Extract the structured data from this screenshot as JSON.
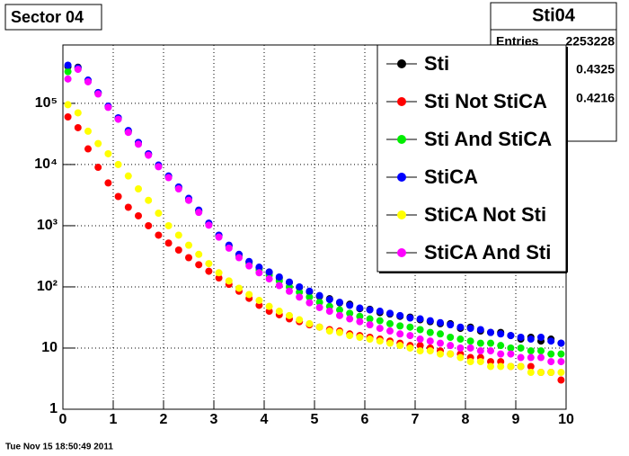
{
  "chart_data": {
    "type": "scatter",
    "title": "Sector 04",
    "footer": "Tue Nov 15 18:50:49 2011",
    "stats": {
      "title": "Sti04",
      "entries_label": "Entries",
      "entries": 2253228,
      "mean": 0.4325,
      "rms": 0.4216
    },
    "log_y": true,
    "grid": true,
    "legend": "top-right",
    "xlim": [
      0,
      10
    ],
    "xticks": [
      0,
      1,
      2,
      3,
      4,
      5,
      6,
      7,
      8,
      9,
      10
    ],
    "ylim": [
      1,
      900000
    ],
    "yticks": [
      1,
      10,
      {
        "value": 100,
        "label": "10²"
      },
      {
        "value": 1000,
        "label": "10³"
      },
      {
        "value": 10000,
        "label": "10⁴"
      },
      {
        "value": 100000,
        "label": "10⁵"
      }
    ],
    "x": [
      0.1,
      0.3,
      0.5,
      0.7,
      0.9,
      1.1,
      1.3,
      1.5,
      1.7,
      1.9,
      2.1,
      2.3,
      2.5,
      2.7,
      2.9,
      3.1,
      3.3,
      3.5,
      3.7,
      3.9,
      4.1,
      4.3,
      4.5,
      4.7,
      4.9,
      5.1,
      5.3,
      5.5,
      5.7,
      5.9,
      6.1,
      6.3,
      6.5,
      6.7,
      6.9,
      7.1,
      7.3,
      7.5,
      7.7,
      7.9,
      8.1,
      8.3,
      8.5,
      8.7,
      8.9,
      9.1,
      9.3,
      9.5,
      9.7,
      9.9
    ],
    "series": [
      {
        "name": "Sti",
        "color": "#000000",
        "values": [
          400000,
          390000,
          235000,
          148000,
          88000,
          57000,
          35000,
          22500,
          14800,
          9600,
          6400,
          4200,
          2700,
          1750,
          1080,
          690,
          470,
          335,
          255,
          205,
          172,
          140,
          118,
          98,
          83,
          70,
          64,
          55,
          52,
          44,
          43,
          38,
          36,
          33,
          32,
          29,
          27,
          25,
          25,
          21,
          22,
          19,
          18,
          18,
          16,
          14,
          15,
          13,
          14,
          12
        ]
      },
      {
        "name": "Sti Not StiCA",
        "color": "#ff0000",
        "values": [
          60000,
          40000,
          18000,
          9000,
          5000,
          3000,
          2000,
          1450,
          1000,
          700,
          520,
          400,
          300,
          230,
          180,
          140,
          110,
          85,
          65,
          50,
          40,
          35,
          30,
          27,
          24,
          22,
          20,
          19,
          17,
          16,
          15,
          14,
          13,
          12,
          11,
          11,
          10,
          9,
          8,
          8,
          7,
          7,
          6,
          6,
          5,
          5,
          5,
          4,
          4,
          3
        ]
      },
      {
        "name": "Sti And StiCA",
        "color": "#00ee00",
        "values": [
          330000,
          370000,
          230000,
          145000,
          87000,
          56000,
          34000,
          22000,
          14500,
          9400,
          6200,
          4100,
          2650,
          1700,
          1050,
          670,
          450,
          320,
          240,
          190,
          155,
          125,
          100,
          82,
          68,
          56,
          48,
          42,
          37,
          33,
          30,
          28,
          25,
          23,
          22,
          20,
          18,
          17,
          15,
          14,
          13,
          12,
          12,
          11,
          10,
          10,
          9,
          9,
          8,
          8
        ]
      },
      {
        "name": "StiCA",
        "color": "#0000ff",
        "values": [
          420000,
          380000,
          240000,
          150000,
          90000,
          58000,
          36000,
          23000,
          15000,
          9800,
          6500,
          4300,
          2800,
          1800,
          1100,
          700,
          480,
          340,
          260,
          210,
          175,
          145,
          120,
          100,
          85,
          72,
          62,
          56,
          50,
          45,
          42,
          40,
          37,
          34,
          31,
          30,
          28,
          26,
          24,
          22,
          21,
          20,
          18,
          17,
          16,
          15,
          14,
          15,
          13,
          12
        ]
      },
      {
        "name": "StiCA Not Sti",
        "color": "#ffff00",
        "values": [
          95000,
          70000,
          35000,
          22000,
          15000,
          10000,
          6500,
          4000,
          2600,
          1600,
          1000,
          700,
          480,
          340,
          240,
          170,
          125,
          95,
          75,
          60,
          48,
          40,
          34,
          29,
          25,
          22,
          19,
          18,
          16,
          15,
          14,
          13,
          12,
          11,
          10,
          9,
          9,
          8,
          8,
          7,
          6,
          6,
          5,
          5,
          5,
          5,
          4,
          4,
          4,
          4
        ]
      },
      {
        "name": "StiCA And Sti",
        "color": "#ff00ff",
        "values": [
          250000,
          360000,
          225000,
          142000,
          86000,
          55000,
          33500,
          21500,
          14200,
          9200,
          6100,
          4000,
          2600,
          1650,
          1020,
          650,
          430,
          300,
          220,
          170,
          135,
          105,
          85,
          68,
          55,
          46,
          40,
          34,
          30,
          27,
          24,
          21,
          19,
          17,
          16,
          14,
          13,
          12,
          11,
          10,
          10,
          9,
          9,
          8,
          8,
          7,
          7,
          7,
          6,
          6
        ]
      }
    ]
  }
}
